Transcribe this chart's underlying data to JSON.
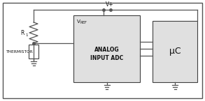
{
  "line_color": "#555555",
  "box_bg": "#e0e0e0",
  "text_color": "#111111",
  "border_color": "#404040",
  "adc_label_vref": "V_{REF}",
  "adc_label_line1": "ANALOG",
  "adc_label_line2": "INPUT ADC",
  "uc_label": "μC",
  "vplus_label": "V+",
  "r1_label": "R",
  "r1_sub": "1",
  "thermistor_label": "THERMISTOR"
}
